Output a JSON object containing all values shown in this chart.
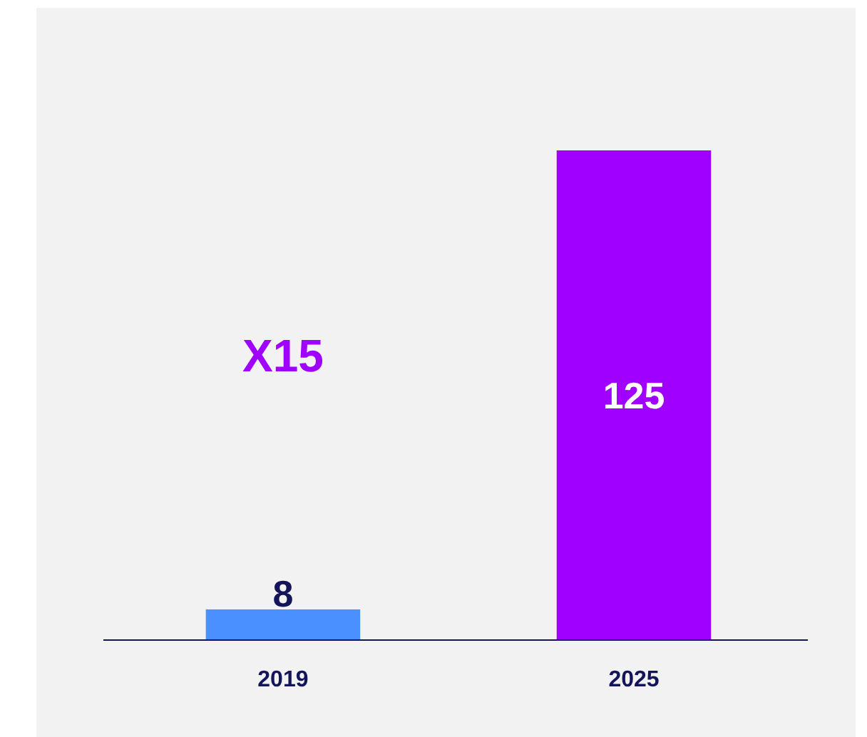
{
  "chart_data": {
    "type": "bar",
    "categories": [
      "2019",
      "2025"
    ],
    "values": [
      8,
      125
    ],
    "colors": [
      "#4a90ff",
      "#a000ff"
    ],
    "data_labels": true,
    "annotations": [
      "X15"
    ],
    "grid": false
  }
}
